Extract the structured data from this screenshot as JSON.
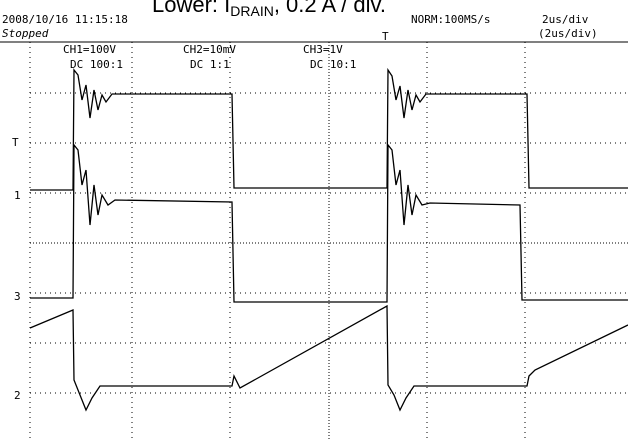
{
  "title": {
    "prefix": "Lower: I",
    "subscript": "DRAIN",
    "suffix": ", 0.2 A / div."
  },
  "header": {
    "datetime": "2008/10/16  11:15:18",
    "status": "Stopped",
    "mode": "NORM:100MS/s",
    "timebase": "2us/div",
    "timebase_actual": "(2us/div)"
  },
  "channels": [
    {
      "scale": "CH1=100V",
      "coupling": "DC  100:1"
    },
    {
      "scale": "CH2=10mV",
      "coupling": "DC  1:1"
    },
    {
      "scale": "CH3=1V",
      "coupling": "DC  10:1"
    }
  ],
  "markers": {
    "ch1": "1",
    "ch2": "2",
    "ch3": "3",
    "trigger": "T"
  }
}
